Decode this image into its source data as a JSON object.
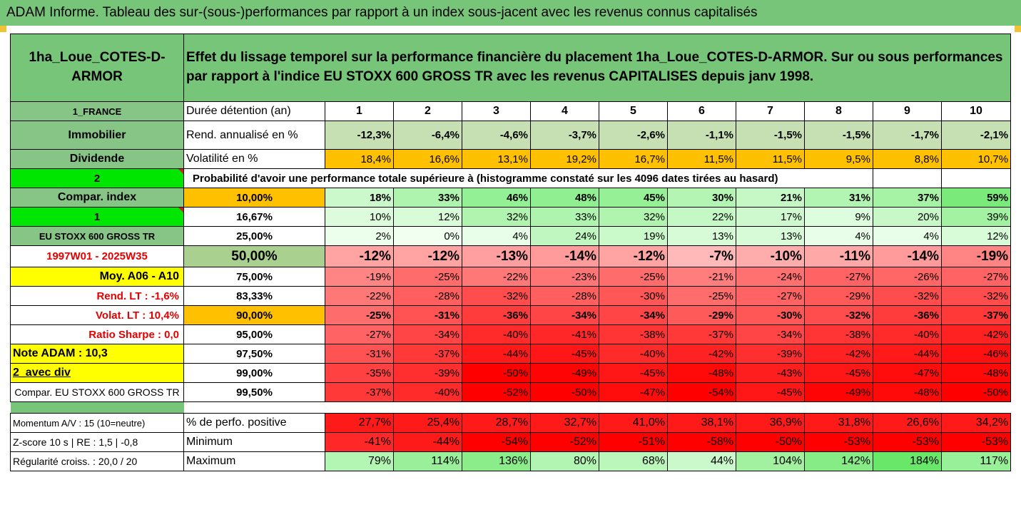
{
  "banner_title": "ADAM Informe. Tableau des sur-(sous-)performances par rapport à un index sous-jacent avec les revenus connus capitalisés",
  "fund_name": "1ha_Loue_COTES-D-ARMOR",
  "description": "Effet du lissage temporel sur la performance financière du placement 1ha_Loue_COTES-D-ARMOR. Sur ou sous performances par rapport à l'indice EU STOXX 600 GROSS TR avec les revenus CAPITALISES depuis janv 1998.",
  "left_labels": {
    "country": "1_FRANCE",
    "asset_class": "Immobilier",
    "dividend": "Dividende",
    "two": "2",
    "compar_index": "Compar. index",
    "one": "1",
    "index_name": "EU STOXX 600 GROSS TR",
    "period": "1997W01 - 2025W35",
    "moy": "Moy. A06 - A10",
    "rend_lt": "Rend. LT :   -1,6%",
    "volat_lt": "Volat. LT :   10,4%",
    "sharpe": "Ratio Sharpe :   0,0",
    "note": "Note ADAM : 10,3",
    "avec_div": "2_avec div",
    "compar_full": "Compar. EU STOXX 600 GROSS TR",
    "momentum": "Momentum A/V : 15 (10=neutre)",
    "zscore": "Z-score 10 s  | RE : 1,5  | -0,8",
    "regularite": "Régularité croiss. : 20,0 / 20"
  },
  "row_labels": {
    "duree": "Durée détention (an)",
    "rend": "Rend. annualisé en %",
    "volat": "Volatilité en %",
    "proba": "Probabilité d'avoir une performance totale supérieure à (histogramme constaté sur les 4096 dates tirées au hasard)",
    "pct_positive": "% de perfo. positive",
    "minimum": "Minimum",
    "maximum": "Maximum"
  },
  "years": [
    "1",
    "2",
    "3",
    "4",
    "5",
    "6",
    "7",
    "8",
    "9",
    "10"
  ],
  "rend_values": [
    "-12,3%",
    "-6,4%",
    "-4,6%",
    "-3,7%",
    "-2,6%",
    "-1,1%",
    "-1,5%",
    "-1,5%",
    "-1,7%",
    "-2,1%"
  ],
  "volat_values": [
    "18,4%",
    "16,6%",
    "13,1%",
    "19,2%",
    "16,7%",
    "11,5%",
    "11,5%",
    "9,5%",
    "8,8%",
    "10,7%"
  ],
  "percentile_rows": [
    {
      "pct": "10,00%",
      "values": [
        "18%",
        "33%",
        "46%",
        "48%",
        "45%",
        "30%",
        "21%",
        "31%",
        "37%",
        "59%"
      ]
    },
    {
      "pct": "16,67%",
      "values": [
        "10%",
        "12%",
        "32%",
        "33%",
        "32%",
        "22%",
        "17%",
        "9%",
        "20%",
        "39%"
      ]
    },
    {
      "pct": "25,00%",
      "values": [
        "2%",
        "0%",
        "4%",
        "24%",
        "19%",
        "13%",
        "13%",
        "4%",
        "4%",
        "12%"
      ]
    },
    {
      "pct": "50,00%",
      "values": [
        "-12%",
        "-12%",
        "-13%",
        "-14%",
        "-12%",
        "-7%",
        "-10%",
        "-11%",
        "-14%",
        "-19%"
      ]
    },
    {
      "pct": "75,00%",
      "values": [
        "-19%",
        "-25%",
        "-22%",
        "-23%",
        "-25%",
        "-21%",
        "-24%",
        "-27%",
        "-26%",
        "-27%"
      ]
    },
    {
      "pct": "83,33%",
      "values": [
        "-22%",
        "-28%",
        "-32%",
        "-28%",
        "-30%",
        "-25%",
        "-27%",
        "-29%",
        "-32%",
        "-32%"
      ]
    },
    {
      "pct": "90,00%",
      "values": [
        "-25%",
        "-31%",
        "-36%",
        "-34%",
        "-34%",
        "-29%",
        "-30%",
        "-32%",
        "-36%",
        "-37%"
      ]
    },
    {
      "pct": "95,00%",
      "values": [
        "-27%",
        "-34%",
        "-40%",
        "-41%",
        "-38%",
        "-37%",
        "-34%",
        "-38%",
        "-40%",
        "-42%"
      ]
    },
    {
      "pct": "97,50%",
      "values": [
        "-31%",
        "-37%",
        "-44%",
        "-45%",
        "-40%",
        "-42%",
        "-39%",
        "-42%",
        "-44%",
        "-46%"
      ]
    },
    {
      "pct": "99,00%",
      "values": [
        "-35%",
        "-39%",
        "-50%",
        "-49%",
        "-45%",
        "-48%",
        "-43%",
        "-45%",
        "-47%",
        "-48%"
      ]
    },
    {
      "pct": "99,50%",
      "values": [
        "-37%",
        "-40%",
        "-52%",
        "-50%",
        "-47%",
        "-54%",
        "-45%",
        "-49%",
        "-48%",
        "-50%"
      ]
    }
  ],
  "pct_positive_values": [
    "27,7%",
    "25,4%",
    "28,7%",
    "32,7%",
    "41,0%",
    "38,1%",
    "36,9%",
    "31,8%",
    "26,6%",
    "34,2%"
  ],
  "minimum_values": [
    "-41%",
    "-44%",
    "-54%",
    "-52%",
    "-51%",
    "-58%",
    "-50%",
    "-53%",
    "-53%",
    "-53%"
  ],
  "maximum_values": [
    "79%",
    "114%",
    "136%",
    "80%",
    "68%",
    "44%",
    "104%",
    "142%",
    "184%",
    "117%"
  ],
  "colors": {
    "header_green": "#77c579",
    "label_green": "#86c586",
    "lime": "#00e600",
    "yellow": "#ffff00",
    "orange": "#ffc000",
    "red_text": "#e50000",
    "corner_orange": "#f1c232"
  }
}
